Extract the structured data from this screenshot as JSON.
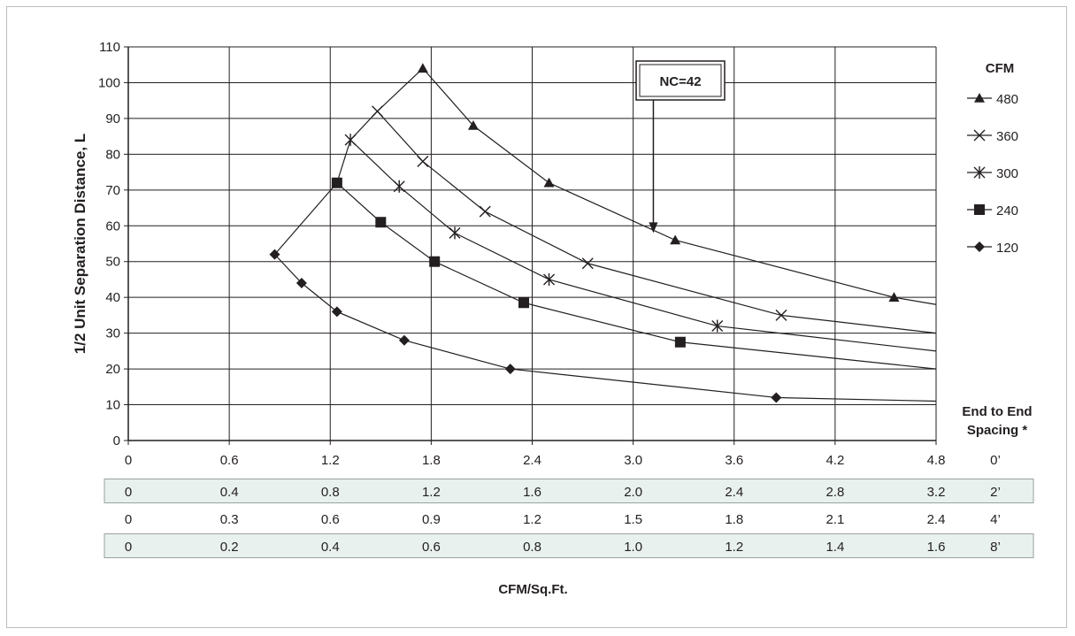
{
  "chart_data": {
    "type": "line",
    "title": "",
    "ylabel": "1/2 Unit Separation Distance, L",
    "xlabel": "CFM/Sq.Ft.",
    "ylim": [
      0,
      110
    ],
    "xlim": [
      0,
      4.8
    ],
    "yticks": [
      "0",
      "10",
      "20",
      "30",
      "40",
      "50",
      "60",
      "70",
      "80",
      "90",
      "100",
      "110"
    ],
    "grid": true,
    "legend": {
      "title": "CFM",
      "placement": "right"
    },
    "series": [
      {
        "name": "480",
        "marker": "triangle",
        "x": [
          1.75,
          2.05,
          2.5,
          3.25,
          4.55,
          4.8
        ],
        "y": [
          104,
          88,
          72,
          56,
          40,
          38
        ]
      },
      {
        "name": "360",
        "marker": "x",
        "x": [
          1.48,
          1.75,
          2.12,
          2.73,
          3.88,
          4.8
        ],
        "y": [
          92,
          78,
          64,
          49.5,
          35,
          30
        ]
      },
      {
        "name": "300",
        "marker": "star",
        "x": [
          1.32,
          1.61,
          1.94,
          2.5,
          3.5,
          4.8
        ],
        "y": [
          84,
          71,
          58,
          45,
          32,
          25
        ]
      },
      {
        "name": "240",
        "marker": "square",
        "x": [
          1.24,
          1.5,
          1.82,
          2.35,
          3.28,
          4.8
        ],
        "y": [
          72,
          61,
          50,
          38.5,
          27.5,
          20
        ]
      },
      {
        "name": "120",
        "marker": "diamond",
        "x": [
          0.87,
          1.03,
          1.24,
          1.64,
          2.27,
          3.85,
          4.8
        ],
        "y": [
          52,
          44,
          36,
          28,
          20,
          12,
          11
        ]
      }
    ],
    "segments": [
      {
        "series": "480",
        "from": [
          0.87,
          52
        ],
        "to": [
          1.24,
          72
        ]
      },
      {
        "series": "480",
        "from": [
          1.24,
          72
        ],
        "to": [
          1.32,
          84
        ]
      },
      {
        "series": "480",
        "from": [
          1.32,
          84
        ],
        "to": [
          1.48,
          92
        ]
      },
      {
        "series": "480",
        "from": [
          1.48,
          92
        ],
        "to": [
          1.75,
          104
        ]
      }
    ],
    "annotation": {
      "label": "NC=42",
      "x": 3.12,
      "y": 58
    },
    "spacing_header": [
      "End to End",
      "Spacing *"
    ],
    "spacing_rows": [
      {
        "spacing": "0’",
        "values": [
          "0",
          "0.6",
          "1.2",
          "1.8",
          "2.4",
          "3.0",
          "3.6",
          "4.2",
          "4.8"
        ],
        "shaded": false
      },
      {
        "spacing": "2’",
        "values": [
          "0",
          "0.4",
          "0.8",
          "1.2",
          "1.6",
          "2.0",
          "2.4",
          "2.8",
          "3.2"
        ],
        "shaded": true
      },
      {
        "spacing": "4’",
        "values": [
          "0",
          "0.3",
          "0.6",
          "0.9",
          "1.2",
          "1.5",
          "1.8",
          "2.1",
          "2.4"
        ],
        "shaded": false
      },
      {
        "spacing": "8’",
        "values": [
          "0",
          "0.2",
          "0.4",
          "0.6",
          "0.8",
          "1.0",
          "1.2",
          "1.4",
          "1.6"
        ],
        "shaded": true
      }
    ],
    "colors": {
      "line": "#231f20",
      "shaded_row": "#e8f1ee",
      "grid": "#231f20"
    }
  }
}
